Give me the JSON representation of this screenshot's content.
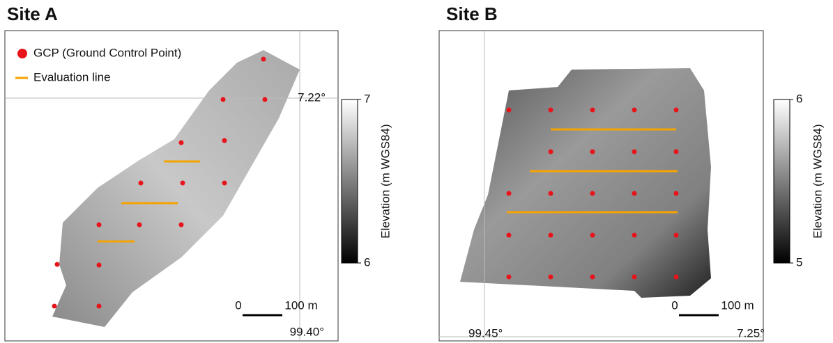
{
  "panels": [
    {
      "title": "Site A",
      "legend": [
        "GCP (Ground Control Point)",
        "Evaluation line"
      ],
      "colorbar": {
        "label": "Elevation (m WGS84)",
        "lim": [
          6,
          7
        ],
        "ticks": [
          6,
          7
        ]
      },
      "scale_bar": [
        "0",
        "100 m"
      ],
      "coords": [
        "7.22°",
        "99.40°"
      ]
    },
    {
      "title": "Site B",
      "colorbar": {
        "label": "Elevation (m WGS84)",
        "lim": [
          5,
          6
        ],
        "ticks": [
          5,
          6
        ]
      },
      "scale_bar": [
        "0",
        "100 m"
      ],
      "coords": [
        "99.45°",
        "7.25°"
      ]
    }
  ]
}
